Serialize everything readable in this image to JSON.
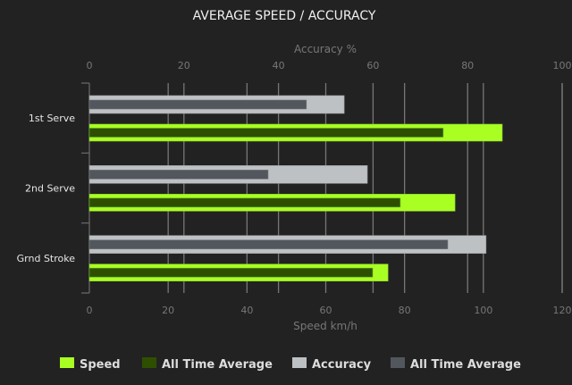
{
  "chart_data": {
    "type": "bar",
    "title": "AVERAGE SPEED / ACCURACY",
    "categories": [
      "1st Serve",
      "2nd Serve",
      "Grnd Stroke"
    ],
    "top_axis": {
      "label": "Accuracy %",
      "range": [
        0,
        100
      ],
      "ticks": [
        0,
        20,
        40,
        60,
        80,
        100
      ]
    },
    "bottom_axis": {
      "label": "Speed km/h",
      "range": [
        0,
        120
      ],
      "ticks": [
        0,
        20,
        40,
        60,
        80,
        100,
        120
      ]
    },
    "grid": true,
    "legend_position": "bottom",
    "series": [
      {
        "name": "Speed",
        "axis": "bottom",
        "color": "#aaff22",
        "values": [
          104.8,
          92.8,
          75.8
        ]
      },
      {
        "name": "All Time Average",
        "axis": "bottom",
        "color": "#2f4f00",
        "values": [
          89.8,
          78.9,
          71.9
        ]
      },
      {
        "name": "Accuracy",
        "axis": "top",
        "color": "#bdc1c4",
        "values": [
          53.9,
          58.8,
          83.9
        ]
      },
      {
        "name": "All Time Average",
        "axis": "top",
        "color": "#52575e",
        "values": [
          45.9,
          37.8,
          75.8
        ]
      }
    ]
  }
}
